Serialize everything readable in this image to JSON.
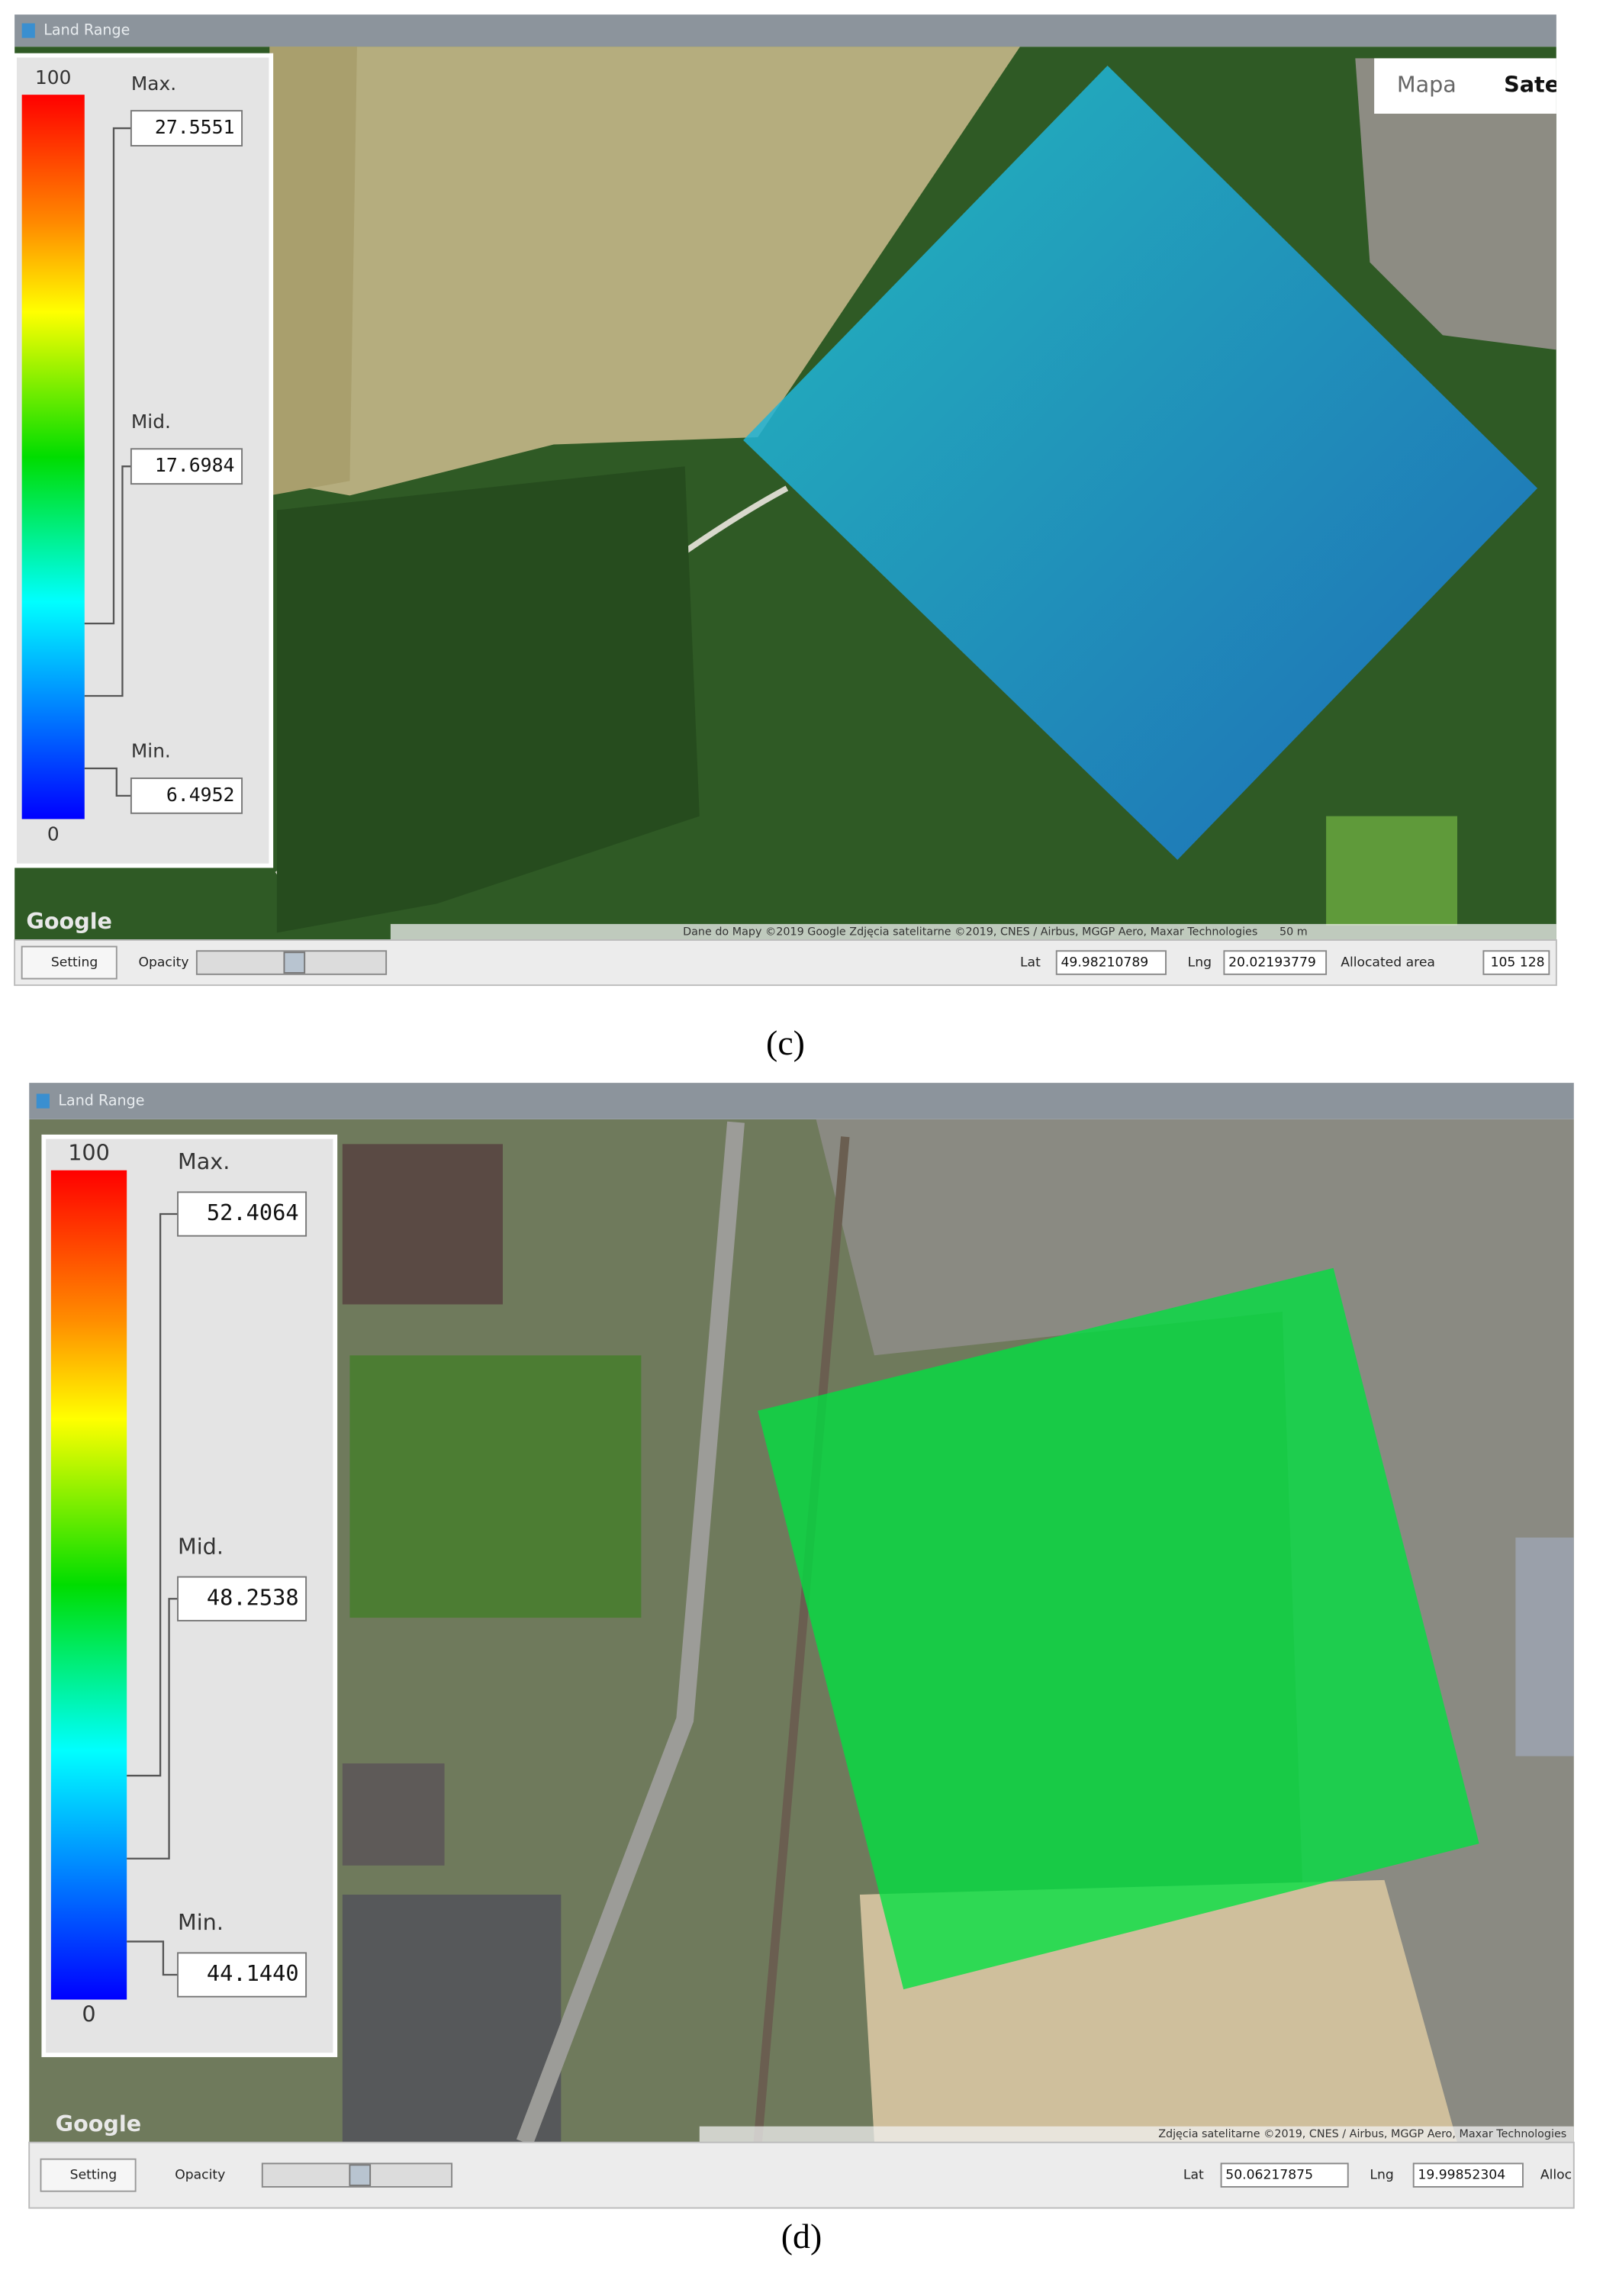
{
  "panels": [
    {
      "window_title": "Land Range",
      "legend": {
        "top": "100",
        "bottom": "0",
        "max_label": "Max.",
        "max_value": "27.5551",
        "mid_label": "Mid.",
        "mid_value": "17.6984",
        "min_label": "Min.",
        "min_value": "6.4952"
      },
      "map_type_buttons": [
        "Mapa",
        "Satel"
      ],
      "logo": "Google",
      "attribution": "Dane do Mapy ©2019 Google Zdjęcia satelitarne ©2019, CNES / Airbus, MGGP Aero, Maxar Technologies",
      "scale": "50 m",
      "status": {
        "setting": "Setting",
        "opacity": "Opacity",
        "lat_label": "Lat",
        "lat": "49.98210789",
        "lng_label": "Lng",
        "lng": "20.02193779",
        "area_label": "Allocated area",
        "area": "105 128"
      },
      "caption": "(c)"
    },
    {
      "window_title": "Land Range",
      "legend": {
        "top": "100",
        "bottom": "0",
        "max_label": "Max.",
        "max_value": "52.4064",
        "mid_label": "Mid.",
        "mid_value": "48.2538",
        "min_label": "Min.",
        "min_value": "44.1440"
      },
      "logo": "Google",
      "attribution": "Zdjęcia satelitarne ©2019, CNES / Airbus, MGGP Aero, Maxar Technologies",
      "status": {
        "setting": "Setting",
        "opacity": "Opacity",
        "lat_label": "Lat",
        "lat": "50.06217875",
        "lng_label": "Lng",
        "lng": "19.99852304",
        "area_label": "Alloc"
      },
      "caption": "(d)"
    }
  ]
}
